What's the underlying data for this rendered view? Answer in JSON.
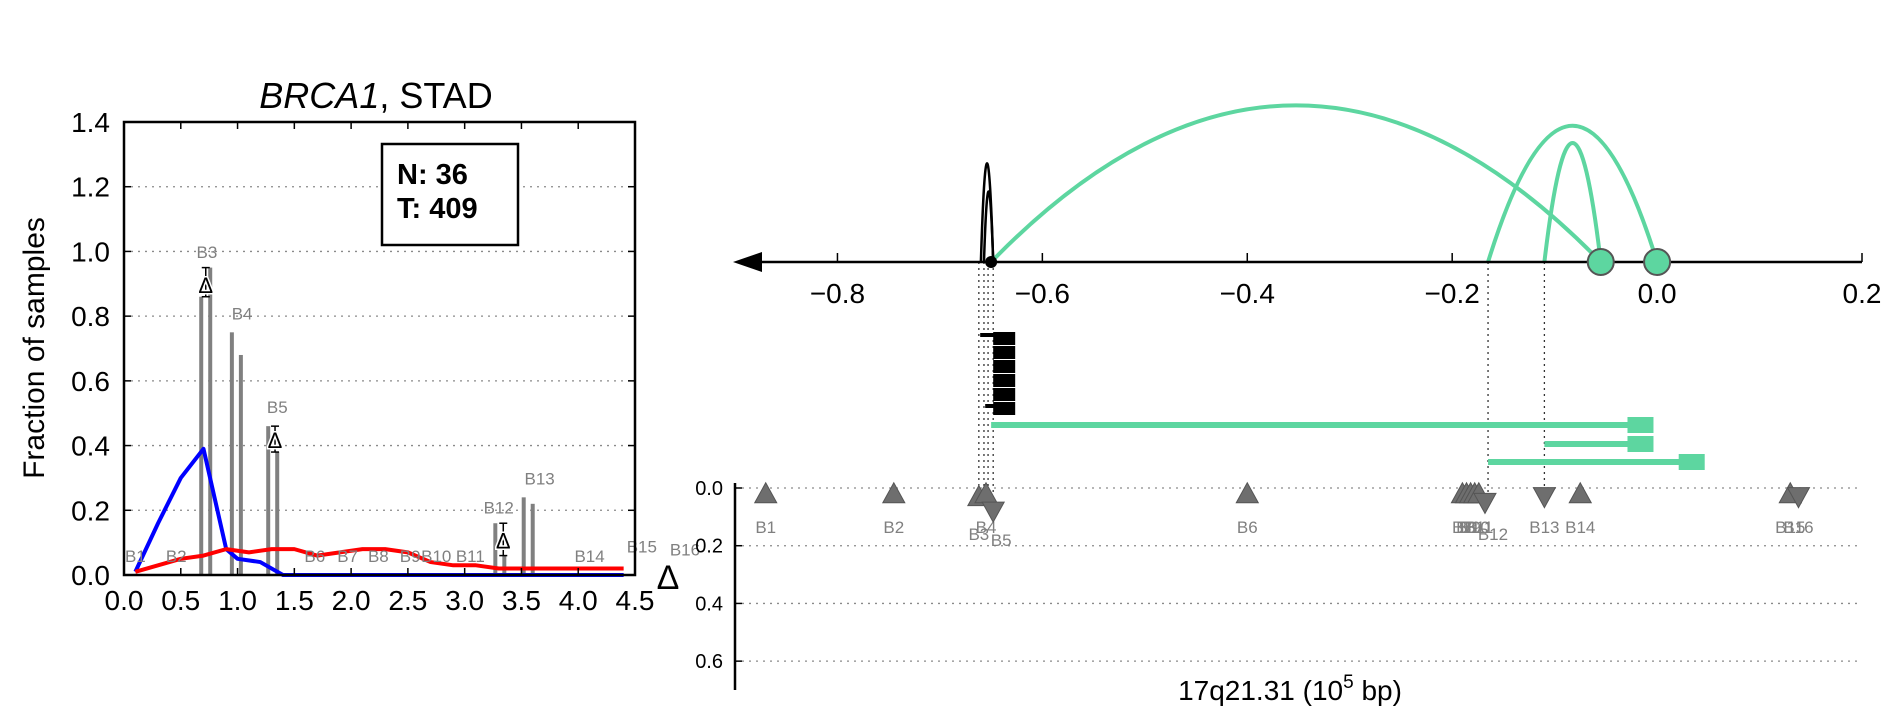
{
  "chart_data": [
    {
      "type": "bar",
      "title_gene": "BRCA1",
      "title_rest": ", STAD",
      "ylabel": "Fraction of samples",
      "xlim": [
        0.0,
        4.5
      ],
      "ylim": [
        0.0,
        1.4
      ],
      "xticks": [
        "0.0",
        "0.5",
        "1.0",
        "1.5",
        "2.0",
        "2.5",
        "3.0",
        "3.5",
        "4.0",
        "4.5"
      ],
      "yticks": [
        "0.0",
        "0.2",
        "0.4",
        "0.6",
        "0.8",
        "1.0",
        "1.2",
        "1.4"
      ],
      "grid": "horizontal dotted",
      "counts": {
        "normal": "N: 36",
        "tumor": "T: 409"
      },
      "delta_symbol": "Δ",
      "bars": [
        {
          "label": "B3",
          "x": 0.68,
          "normal": 0.86,
          "tumor": 0.95
        },
        {
          "label": "B4",
          "x": 0.95,
          "normal": 0.75,
          "tumor": 0.68
        },
        {
          "label": "B5",
          "x": 1.27,
          "normal": 0.46,
          "tumor": 0.38
        },
        {
          "label": "B12",
          "x": 3.27,
          "normal": 0.16,
          "tumor": 0.06
        },
        {
          "label": "B13",
          "x": 3.52,
          "normal": 0.24,
          "tumor": 0.22
        }
      ],
      "bar_label_positions": [
        {
          "label": "B1",
          "x": 0.1,
          "y": 0.04
        },
        {
          "label": "B2",
          "x": 0.46,
          "y": 0.04
        },
        {
          "label": "B3",
          "x": 0.73,
          "y": 0.98
        },
        {
          "label": "B4",
          "x": 1.04,
          "y": 0.79
        },
        {
          "label": "B5",
          "x": 1.35,
          "y": 0.5
        },
        {
          "label": "B6",
          "x": 1.68,
          "y": 0.04
        },
        {
          "label": "B7",
          "x": 1.97,
          "y": 0.04
        },
        {
          "label": "B8",
          "x": 2.24,
          "y": 0.04
        },
        {
          "label": "B9",
          "x": 2.52,
          "y": 0.04
        },
        {
          "label": "B10",
          "x": 2.75,
          "y": 0.04
        },
        {
          "label": "B11",
          "x": 3.05,
          "y": 0.04
        },
        {
          "label": "B12",
          "x": 3.3,
          "y": 0.19
        },
        {
          "label": "B13",
          "x": 3.66,
          "y": 0.28
        },
        {
          "label": "B14",
          "x": 4.1,
          "y": 0.04
        },
        {
          "label": "B15",
          "x": 4.56,
          "y": 0.07
        },
        {
          "label": "B16",
          "x": 4.94,
          "y": 0.06
        }
      ],
      "delta_markers": [
        {
          "x": 0.72,
          "y": 0.9,
          "lo": 0.86,
          "hi": 0.95
        },
        {
          "x": 1.33,
          "y": 0.42,
          "lo": 0.38,
          "hi": 0.46
        },
        {
          "x": 3.34,
          "y": 0.11,
          "lo": 0.06,
          "hi": 0.16
        }
      ],
      "series": [
        {
          "color": "#0000ff",
          "x": [
            0.1,
            0.3,
            0.5,
            0.7,
            0.9,
            1.0,
            1.2,
            1.4,
            1.6,
            1.8,
            2.0,
            2.5,
            3.0,
            3.5,
            4.0,
            4.4
          ],
          "y": [
            0.01,
            0.16,
            0.3,
            0.39,
            0.08,
            0.05,
            0.04,
            0.0,
            0.0,
            0.0,
            0.0,
            0.0,
            0.0,
            0.0,
            0.0,
            0.0
          ]
        },
        {
          "color": "#ff0000",
          "x": [
            0.1,
            0.3,
            0.5,
            0.7,
            0.9,
            1.1,
            1.3,
            1.5,
            1.7,
            1.9,
            2.1,
            2.3,
            2.5,
            2.7,
            2.9,
            3.1,
            3.3,
            3.5,
            3.7,
            3.9,
            4.1,
            4.4
          ],
          "y": [
            0.01,
            0.03,
            0.05,
            0.06,
            0.08,
            0.07,
            0.08,
            0.08,
            0.06,
            0.07,
            0.08,
            0.08,
            0.07,
            0.04,
            0.03,
            0.03,
            0.02,
            0.02,
            0.02,
            0.02,
            0.02,
            0.02
          ]
        }
      ]
    },
    {
      "type": "diagram",
      "xlabel_main": "17q21.31 (10",
      "xlabel_sup": "5",
      "xlabel_tail": " bp)",
      "xlim": [
        -0.9,
        0.2
      ],
      "xticks": [
        -0.8,
        -0.6,
        -0.4,
        -0.2,
        0.0,
        0.2
      ],
      "xtick_labels": [
        "−0.8",
        "−0.6",
        "−0.4",
        "−0.2",
        "0.0",
        "0.2"
      ],
      "track_ylim": [
        0.0,
        0.7
      ],
      "track_yticks": [
        "0.0",
        "0.2",
        "0.4",
        "0.6"
      ],
      "arc_color": "#5dd6a0",
      "arcs": [
        {
          "start": -0.65,
          "end": -0.055,
          "height": 1.0,
          "color": "#5dd6a0"
        },
        {
          "start": -0.165,
          "end": 0.0,
          "height": 0.87,
          "color": "#5dd6a0"
        },
        {
          "start": -0.11,
          "end": -0.055,
          "height": 0.76,
          "color": "#5dd6a0"
        },
        {
          "start": -0.66,
          "end": -0.648,
          "height": 0.63,
          "color": "#000000"
        },
        {
          "start": -0.657,
          "end": -0.648,
          "height": 0.45,
          "color": "#000000"
        }
      ],
      "junction_points": [
        {
          "x": -0.65,
          "color": "#000000"
        },
        {
          "x": -0.055,
          "color": "#5dd6a0"
        },
        {
          "x": 0.0,
          "color": "#5dd6a0"
        }
      ],
      "isoforms": [
        {
          "start": -0.65,
          "end": -0.025,
          "color": "#5dd6a0"
        },
        {
          "start": -0.11,
          "end": -0.025,
          "color": "#5dd6a0"
        },
        {
          "start": -0.165,
          "end": 0.025,
          "color": "#5dd6a0"
        }
      ],
      "exon_markers": [
        {
          "label": "B1",
          "x": -0.87,
          "dir": "up",
          "val": 0.02
        },
        {
          "label": "B2",
          "x": -0.745,
          "dir": "up",
          "val": 0.02
        },
        {
          "label": "B3",
          "x": -0.662,
          "dir": "up",
          "val": 0.03
        },
        {
          "label": "B4",
          "x": -0.655,
          "dir": "up",
          "val": 0.02
        },
        {
          "label": "B5",
          "x": -0.648,
          "dir": "down",
          "val": 0.08
        },
        {
          "label": "B6",
          "x": -0.4,
          "dir": "up",
          "val": 0.02
        },
        {
          "label": "B7",
          "x": -0.19,
          "dir": "up",
          "val": 0.02
        },
        {
          "label": "B8",
          "x": -0.186,
          "dir": "up",
          "val": 0.02
        },
        {
          "label": "B9",
          "x": -0.182,
          "dir": "up",
          "val": 0.02
        },
        {
          "label": "B10",
          "x": -0.178,
          "dir": "up",
          "val": 0.02
        },
        {
          "label": "B11",
          "x": -0.174,
          "dir": "up",
          "val": 0.02
        },
        {
          "label": "B12",
          "x": -0.168,
          "dir": "down",
          "val": 0.05
        },
        {
          "label": "B13",
          "x": -0.11,
          "dir": "down",
          "val": 0.03
        },
        {
          "label": "B14",
          "x": -0.075,
          "dir": "up",
          "val": 0.02
        },
        {
          "label": "B15",
          "x": 0.13,
          "dir": "up",
          "val": 0.02
        },
        {
          "label": "B16",
          "x": 0.138,
          "dir": "down",
          "val": 0.03
        }
      ]
    }
  ]
}
